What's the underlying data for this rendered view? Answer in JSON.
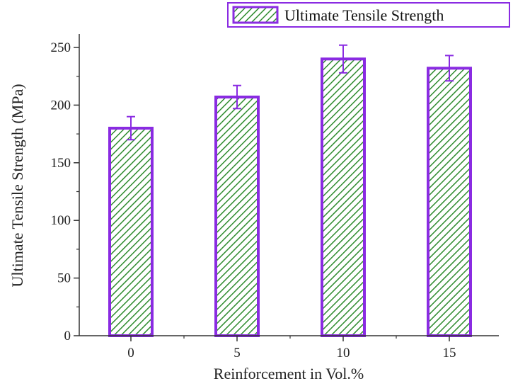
{
  "chart_data": {
    "type": "bar",
    "categories": [
      "0",
      "5",
      "10",
      "15"
    ],
    "series": [
      {
        "name": "Ultimate Tensile Strength",
        "values": [
          180,
          207,
          240,
          232
        ],
        "errors": [
          10,
          10,
          12,
          11
        ]
      }
    ],
    "xlabel": "Reinforcement in Vol.%",
    "ylabel": "Ultimate Tensile Strength (MPa)",
    "ylim": [
      0,
      250
    ],
    "yticks": [
      0,
      50,
      100,
      150,
      200,
      250
    ],
    "grid": false,
    "legend_position": "top-right",
    "colors": {
      "bar_fill": "#ffffff",
      "hatch": "#2e8b2e",
      "bar_edge": "#8a2be2",
      "error_bar": "#8a2be2",
      "axis": "#333333"
    }
  }
}
